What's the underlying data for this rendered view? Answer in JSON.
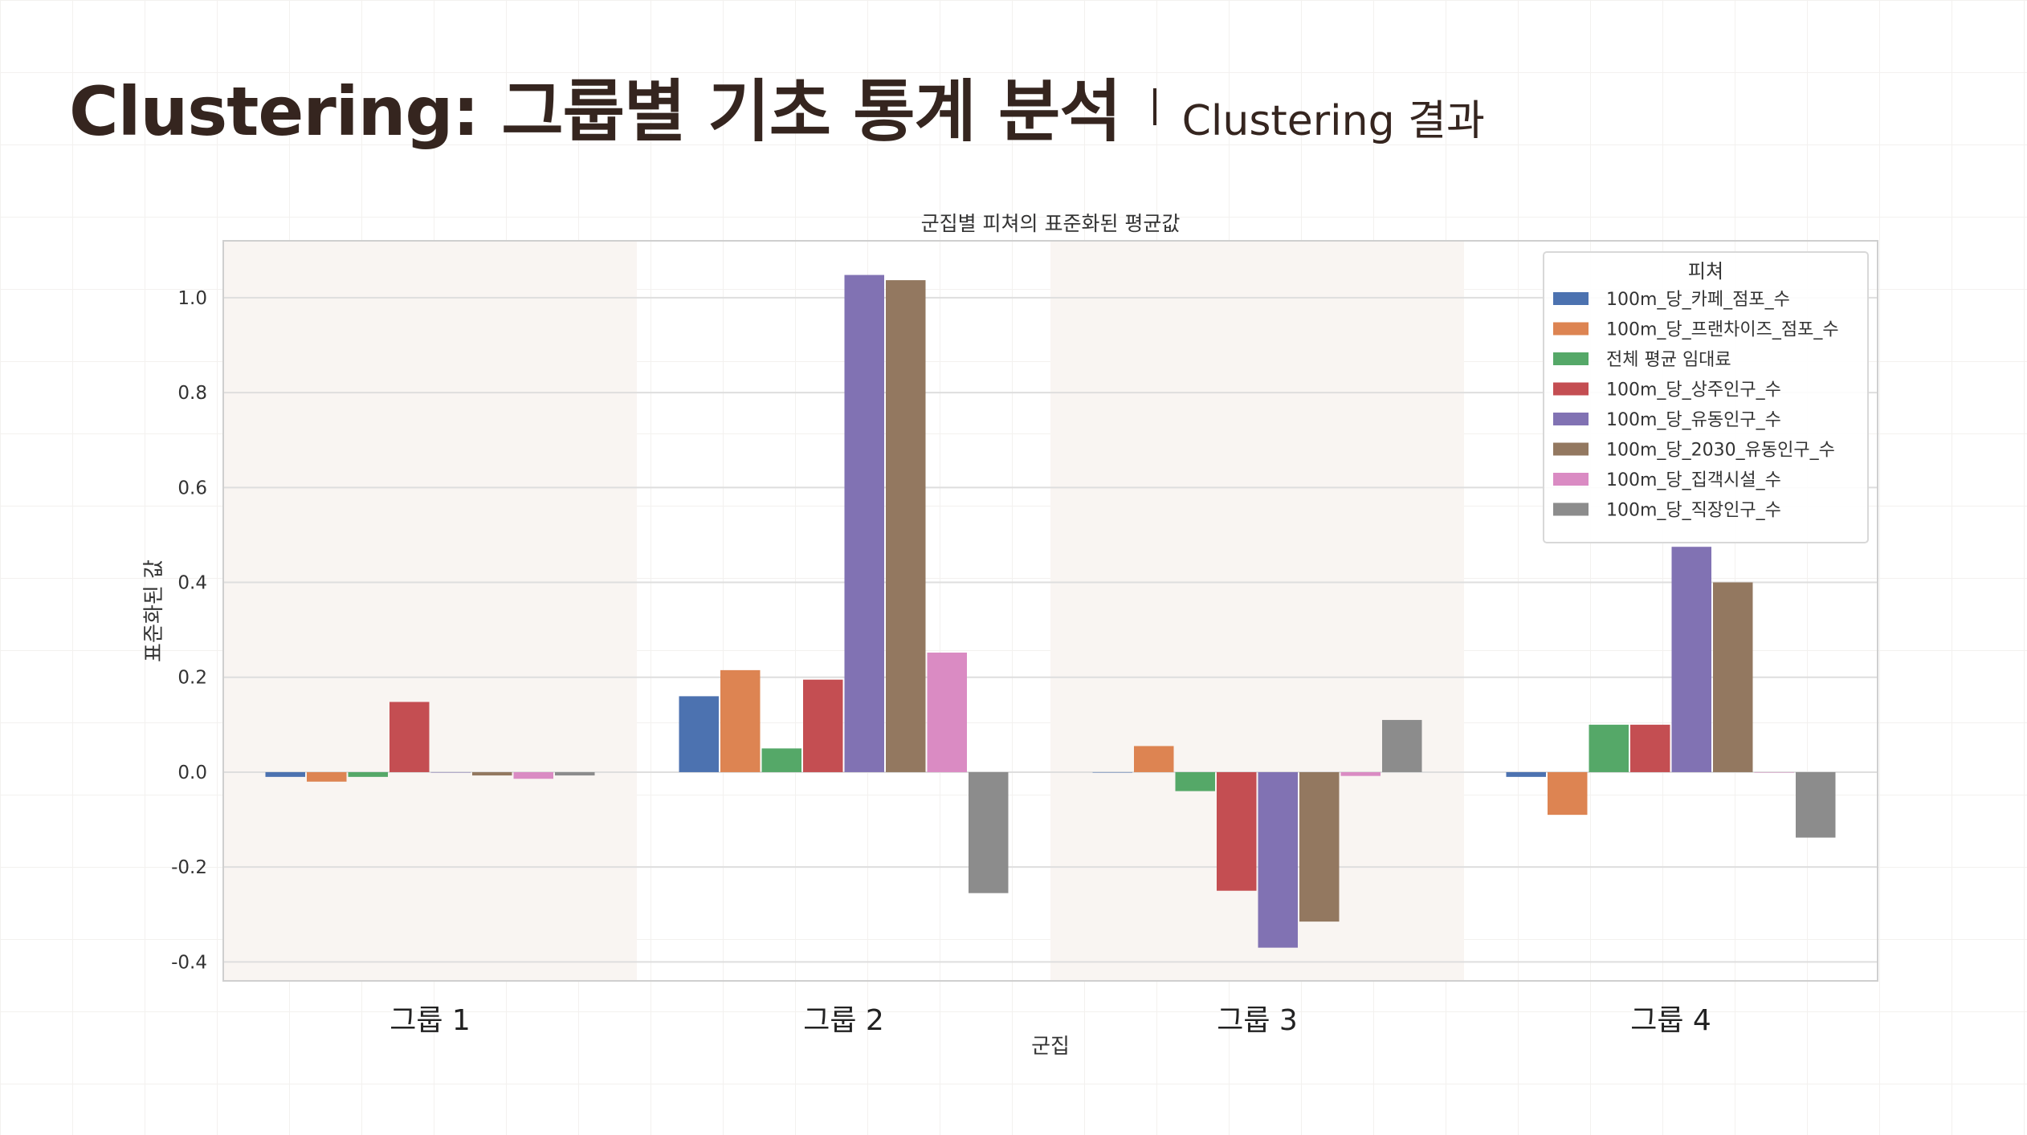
{
  "header": {
    "title": "Clustering: 그룹별 기초 통계 분석",
    "subtitle": "Clustering 결과"
  },
  "chart_data": {
    "type": "bar",
    "title": "군집별 피쳐의 표준화된 평균값",
    "xlabel": "군집",
    "ylabel": "표준화된 값",
    "categories": [
      "그룹 1",
      "그룹 2",
      "그룹 3",
      "그룹 4"
    ],
    "ylim": [
      -0.44,
      1.12
    ],
    "yticks": [
      -0.4,
      -0.2,
      0.0,
      0.2,
      0.4,
      0.6,
      0.8,
      1.0
    ],
    "ytick_labels": [
      "-0.4",
      "-0.2",
      "0.0",
      "0.2",
      "0.4",
      "0.6",
      "0.8",
      "1.0"
    ],
    "grid": true,
    "legend_title": "피쳐",
    "legend_position": "top-right",
    "series": [
      {
        "name": "100m_당_카페_점포_수",
        "color": "#4c72b0",
        "values": [
          -0.01,
          0.16,
          0.0,
          -0.01
        ]
      },
      {
        "name": "100m_당_프랜차이즈_점포_수",
        "color": "#dd8452",
        "values": [
          -0.02,
          0.215,
          0.055,
          -0.09
        ]
      },
      {
        "name": "전체 평균 임대료",
        "color": "#55a868",
        "values": [
          -0.01,
          0.05,
          -0.04,
          0.1
        ]
      },
      {
        "name": "100m_당_상주인구_수",
        "color": "#c44e52",
        "values": [
          0.148,
          0.195,
          -0.25,
          0.1
        ]
      },
      {
        "name": "100m_당_유동인구_수",
        "color": "#8172b3",
        "values": [
          0.0,
          1.048,
          -0.37,
          0.475
        ]
      },
      {
        "name": "100m_당_2030_유동인구_수",
        "color": "#937860",
        "values": [
          -0.007,
          1.037,
          -0.315,
          0.4
        ]
      },
      {
        "name": "100m_당_집객시설_수",
        "color": "#da8bc3",
        "values": [
          -0.014,
          0.252,
          -0.008,
          0.0
        ]
      },
      {
        "name": "100m_당_직장인구_수",
        "color": "#8c8c8c",
        "values": [
          -0.007,
          -0.255,
          0.11,
          -0.138
        ]
      }
    ]
  }
}
